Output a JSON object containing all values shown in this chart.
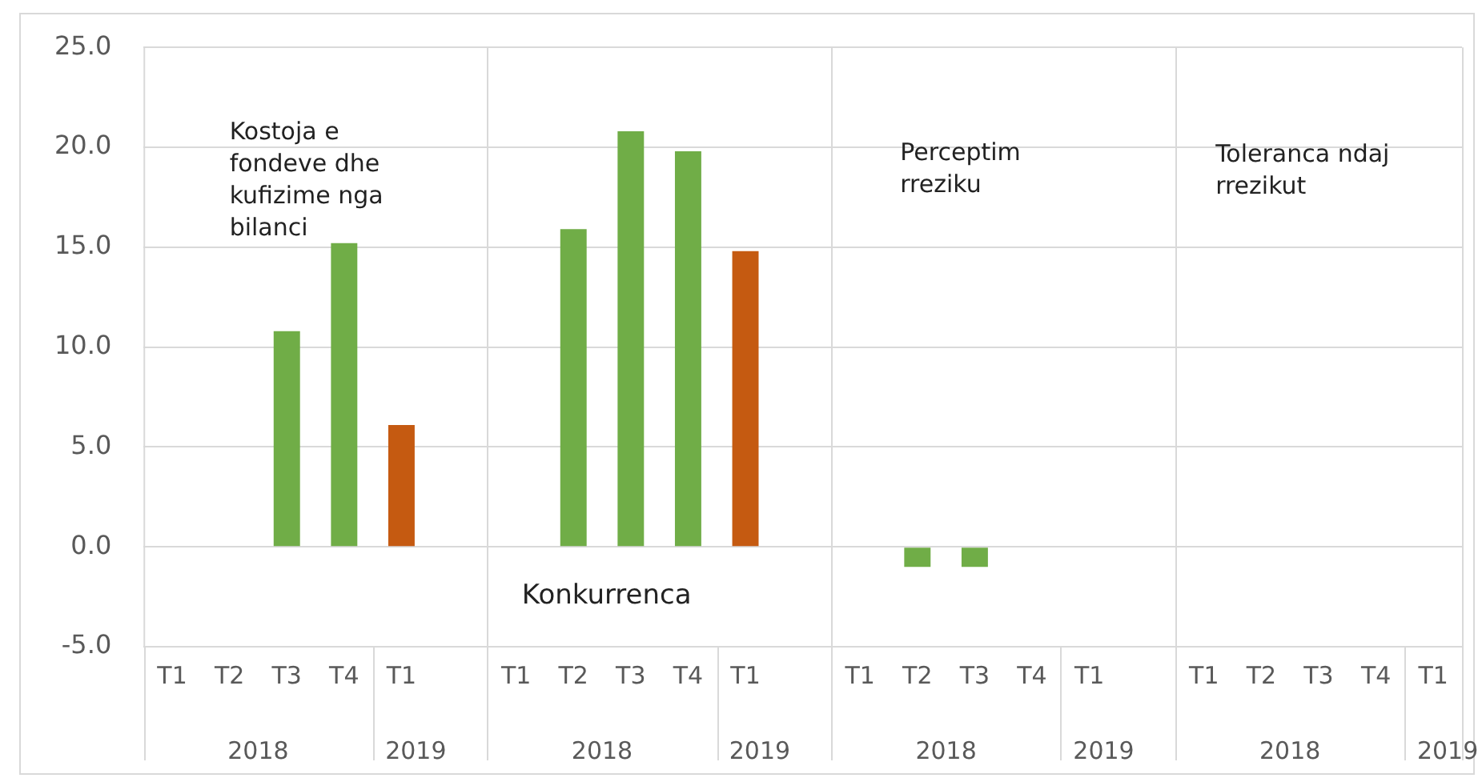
{
  "chart_data": {
    "type": "bar",
    "categories": [
      "T1",
      "T2",
      "T3",
      "T4",
      "T1",
      null,
      "T1",
      "T2",
      "T3",
      "T4",
      "T1",
      null,
      "T1",
      "T2",
      "T3",
      "T4",
      "T1",
      null,
      "T1",
      "T2",
      "T3",
      "T4",
      "T1"
    ],
    "values": [
      0,
      0,
      10.8,
      15.2,
      6.1,
      null,
      0,
      15.9,
      20.8,
      19.8,
      14.8,
      null,
      0,
      -1.0,
      -1.0,
      0,
      0,
      null,
      0,
      0,
      0,
      0,
      0
    ],
    "colors": [
      "#70ad47",
      "#70ad47",
      "#70ad47",
      "#70ad47",
      "#c55a11",
      null,
      "#70ad47",
      "#70ad47",
      "#70ad47",
      "#70ad47",
      "#c55a11",
      null,
      "#70ad47",
      "#70ad47",
      "#70ad47",
      "#70ad47",
      "#c55a11",
      null,
      "#70ad47",
      "#70ad47",
      "#70ad47",
      "#70ad47",
      "#c55a11"
    ],
    "ylim": [
      -5,
      25
    ],
    "yticks": [
      {
        "value": -5,
        "label": "-5.0"
      },
      {
        "value": 0,
        "label": "0.0"
      },
      {
        "value": 5,
        "label": "5.0"
      },
      {
        "value": 10,
        "label": "10.0"
      },
      {
        "value": 15,
        "label": "15.0"
      },
      {
        "value": 20,
        "label": "20.0"
      },
      {
        "value": 25,
        "label": "25.0"
      }
    ],
    "grid": "y",
    "legend": false,
    "annotations": [
      "Kostoja e fondeve dhe kufizime nga bilanci",
      "Konkurrenca",
      "Perceptim rreziku",
      "Toleranca ndaj rrezikut",
      "2018",
      "2019",
      "2018",
      "2019",
      "2018",
      "2019",
      "2018",
      "2019"
    ]
  }
}
